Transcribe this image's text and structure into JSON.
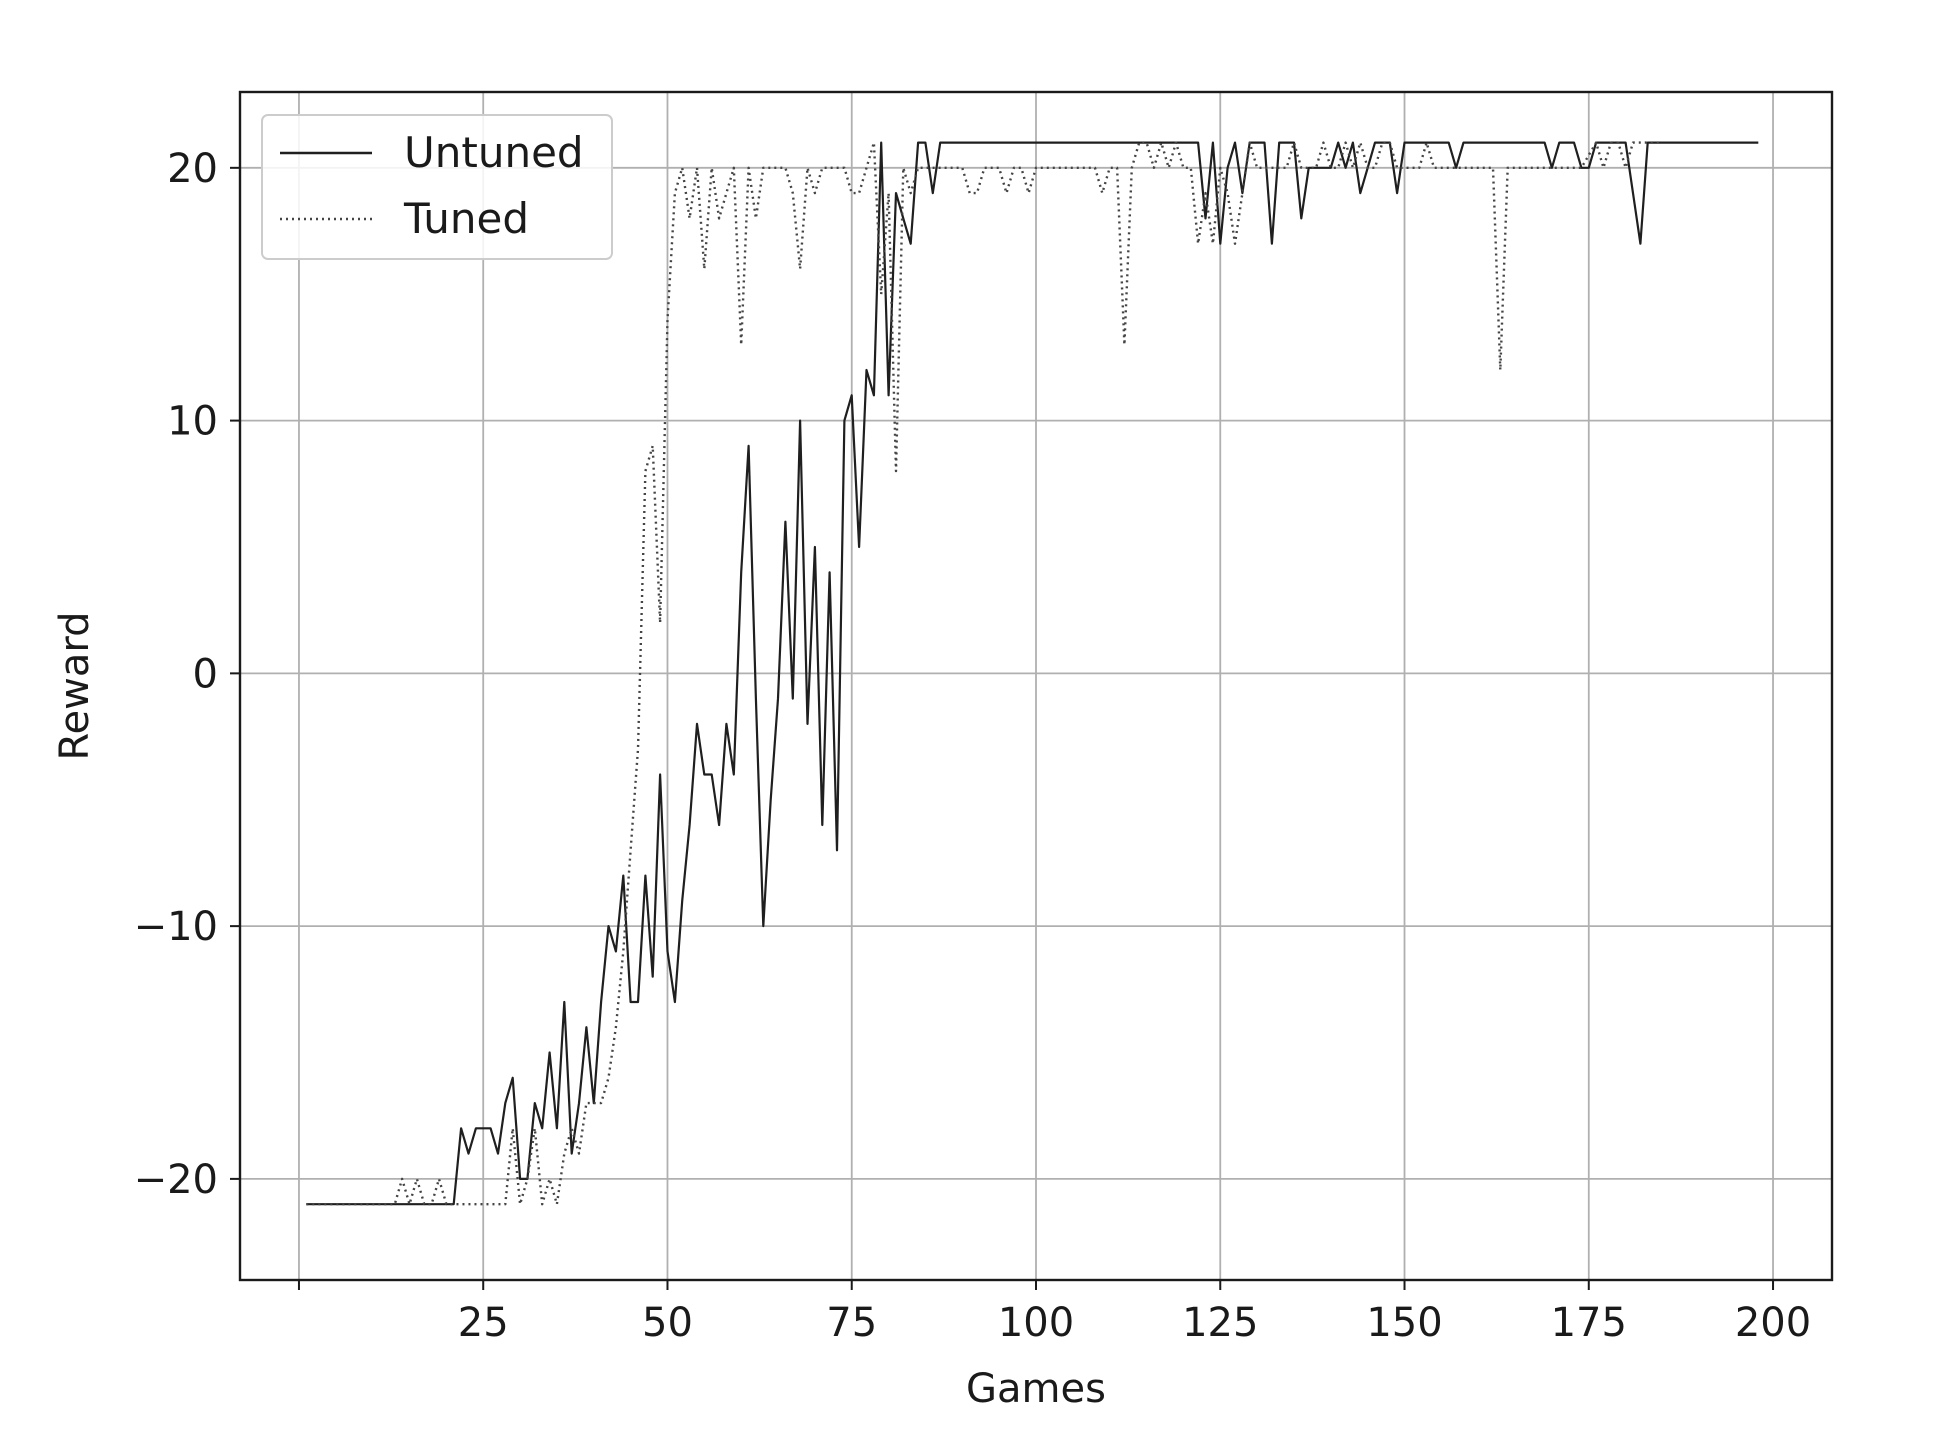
{
  "chart_data": {
    "type": "line",
    "xlabel": "Games",
    "ylabel": "Reward",
    "xlim": [
      -8,
      208
    ],
    "ylim": [
      -24,
      23
    ],
    "xticks": [
      25,
      50,
      75,
      100,
      125,
      150,
      175,
      200
    ],
    "xtick_labels": [
      "25",
      "50",
      "75",
      "100",
      "125",
      "150",
      "175",
      "200"
    ],
    "yticks": [
      -20,
      -10,
      0,
      10,
      20
    ],
    "ytick_labels": [
      "−20",
      "−10",
      "0",
      "10",
      "20"
    ],
    "grid": true,
    "legend_position": "upper-left",
    "colors": {
      "untuned": "#1f1f1f",
      "tuned": "#444444",
      "grid": "#b0b0b0",
      "axes": "#1a1a1a"
    },
    "series": [
      {
        "name": "Untuned",
        "style": "solid",
        "points": [
          [
            1,
            -21
          ],
          [
            5,
            -21
          ],
          [
            10,
            -21
          ],
          [
            15,
            -21
          ],
          [
            20,
            -21
          ],
          [
            21,
            -21
          ],
          [
            22,
            -18
          ],
          [
            23,
            -19
          ],
          [
            24,
            -18
          ],
          [
            25,
            -18
          ],
          [
            26,
            -18
          ],
          [
            27,
            -19
          ],
          [
            28,
            -17
          ],
          [
            29,
            -16
          ],
          [
            30,
            -20
          ],
          [
            31,
            -20
          ],
          [
            32,
            -17
          ],
          [
            33,
            -18
          ],
          [
            34,
            -15
          ],
          [
            35,
            -18
          ],
          [
            36,
            -13
          ],
          [
            37,
            -19
          ],
          [
            38,
            -17
          ],
          [
            39,
            -14
          ],
          [
            40,
            -17
          ],
          [
            41,
            -13
          ],
          [
            42,
            -10
          ],
          [
            43,
            -11
          ],
          [
            44,
            -8
          ],
          [
            45,
            -13
          ],
          [
            46,
            -13
          ],
          [
            47,
            -8
          ],
          [
            48,
            -12
          ],
          [
            49,
            -4
          ],
          [
            50,
            -11
          ],
          [
            51,
            -13
          ],
          [
            52,
            -9
          ],
          [
            53,
            -6
          ],
          [
            54,
            -2
          ],
          [
            55,
            -4
          ],
          [
            56,
            -4
          ],
          [
            57,
            -6
          ],
          [
            58,
            -2
          ],
          [
            59,
            -4
          ],
          [
            60,
            4
          ],
          [
            61,
            9
          ],
          [
            62,
            -1
          ],
          [
            63,
            -10
          ],
          [
            64,
            -5
          ],
          [
            65,
            -1
          ],
          [
            66,
            6
          ],
          [
            67,
            -1
          ],
          [
            68,
            10
          ],
          [
            69,
            -2
          ],
          [
            70,
            5
          ],
          [
            71,
            -6
          ],
          [
            72,
            4
          ],
          [
            73,
            -7
          ],
          [
            74,
            10
          ],
          [
            75,
            11
          ],
          [
            76,
            5
          ],
          [
            77,
            12
          ],
          [
            78,
            11
          ],
          [
            79,
            21
          ],
          [
            80,
            11
          ],
          [
            81,
            19
          ],
          [
            82,
            18
          ],
          [
            83,
            17
          ],
          [
            84,
            21
          ],
          [
            85,
            21
          ],
          [
            86,
            19
          ],
          [
            87,
            21
          ],
          [
            90,
            21
          ],
          [
            100,
            21
          ],
          [
            110,
            21
          ],
          [
            120,
            21
          ],
          [
            122,
            21
          ],
          [
            123,
            18
          ],
          [
            124,
            21
          ],
          [
            125,
            17
          ],
          [
            126,
            20
          ],
          [
            127,
            21
          ],
          [
            128,
            19
          ],
          [
            129,
            21
          ],
          [
            130,
            21
          ],
          [
            131,
            21
          ],
          [
            132,
            17
          ],
          [
            133,
            21
          ],
          [
            134,
            21
          ],
          [
            135,
            21
          ],
          [
            136,
            18
          ],
          [
            137,
            20
          ],
          [
            138,
            20
          ],
          [
            139,
            20
          ],
          [
            140,
            20
          ],
          [
            141,
            21
          ],
          [
            142,
            20
          ],
          [
            143,
            21
          ],
          [
            144,
            19
          ],
          [
            145,
            20
          ],
          [
            146,
            21
          ],
          [
            147,
            21
          ],
          [
            148,
            21
          ],
          [
            149,
            19
          ],
          [
            150,
            21
          ],
          [
            151,
            21
          ],
          [
            152,
            21
          ],
          [
            153,
            21
          ],
          [
            154,
            21
          ],
          [
            155,
            21
          ],
          [
            156,
            21
          ],
          [
            157,
            20
          ],
          [
            158,
            21
          ],
          [
            160,
            21
          ],
          [
            165,
            21
          ],
          [
            169,
            21
          ],
          [
            170,
            20
          ],
          [
            171,
            21
          ],
          [
            172,
            21
          ],
          [
            173,
            21
          ],
          [
            174,
            20
          ],
          [
            175,
            20
          ],
          [
            176,
            21
          ],
          [
            177,
            21
          ],
          [
            178,
            21
          ],
          [
            179,
            21
          ],
          [
            180,
            21
          ],
          [
            181,
            19
          ],
          [
            182,
            17
          ],
          [
            183,
            21
          ],
          [
            185,
            21
          ],
          [
            190,
            21
          ],
          [
            195,
            21
          ],
          [
            198,
            21
          ]
        ]
      },
      {
        "name": "Tuned",
        "style": "dotted",
        "points": [
          [
            1,
            -21
          ],
          [
            5,
            -21
          ],
          [
            10,
            -21
          ],
          [
            12,
            -21
          ],
          [
            13,
            -21
          ],
          [
            14,
            -20
          ],
          [
            15,
            -21
          ],
          [
            16,
            -20
          ],
          [
            17,
            -21
          ],
          [
            18,
            -21
          ],
          [
            19,
            -20
          ],
          [
            20,
            -21
          ],
          [
            22,
            -21
          ],
          [
            24,
            -21
          ],
          [
            26,
            -21
          ],
          [
            28,
            -21
          ],
          [
            29,
            -18
          ],
          [
            30,
            -21
          ],
          [
            31,
            -20
          ],
          [
            32,
            -18
          ],
          [
            33,
            -21
          ],
          [
            34,
            -20
          ],
          [
            35,
            -21
          ],
          [
            36,
            -19
          ],
          [
            37,
            -18
          ],
          [
            38,
            -19
          ],
          [
            39,
            -17
          ],
          [
            40,
            -17
          ],
          [
            41,
            -17
          ],
          [
            42,
            -16
          ],
          [
            43,
            -14
          ],
          [
            44,
            -11
          ],
          [
            45,
            -7
          ],
          [
            46,
            -3
          ],
          [
            47,
            8
          ],
          [
            48,
            9
          ],
          [
            49,
            2
          ],
          [
            50,
            14
          ],
          [
            51,
            19
          ],
          [
            52,
            20
          ],
          [
            53,
            18
          ],
          [
            54,
            20
          ],
          [
            55,
            16
          ],
          [
            56,
            20
          ],
          [
            57,
            18
          ],
          [
            58,
            19
          ],
          [
            59,
            20
          ],
          [
            60,
            13
          ],
          [
            61,
            20
          ],
          [
            62,
            18
          ],
          [
            63,
            20
          ],
          [
            64,
            20
          ],
          [
            65,
            20
          ],
          [
            66,
            20
          ],
          [
            67,
            19
          ],
          [
            68,
            16
          ],
          [
            69,
            20
          ],
          [
            70,
            19
          ],
          [
            71,
            20
          ],
          [
            72,
            20
          ],
          [
            73,
            20
          ],
          [
            74,
            20
          ],
          [
            75,
            19
          ],
          [
            76,
            19
          ],
          [
            77,
            20
          ],
          [
            78,
            21
          ],
          [
            79,
            15
          ],
          [
            80,
            19
          ],
          [
            81,
            8
          ],
          [
            82,
            20
          ],
          [
            83,
            19
          ],
          [
            84,
            20
          ],
          [
            85,
            20
          ],
          [
            86,
            20
          ],
          [
            87,
            20
          ],
          [
            88,
            20
          ],
          [
            89,
            20
          ],
          [
            90,
            20
          ],
          [
            91,
            19
          ],
          [
            92,
            19
          ],
          [
            93,
            20
          ],
          [
            94,
            20
          ],
          [
            95,
            20
          ],
          [
            96,
            19
          ],
          [
            97,
            20
          ],
          [
            98,
            20
          ],
          [
            99,
            19
          ],
          [
            100,
            20
          ],
          [
            105,
            20
          ],
          [
            108,
            20
          ],
          [
            109,
            19
          ],
          [
            110,
            20
          ],
          [
            111,
            20
          ],
          [
            112,
            13
          ],
          [
            113,
            20
          ],
          [
            114,
            21
          ],
          [
            115,
            21
          ],
          [
            116,
            20
          ],
          [
            117,
            21
          ],
          [
            118,
            20
          ],
          [
            119,
            21
          ],
          [
            120,
            20
          ],
          [
            121,
            20
          ],
          [
            122,
            17
          ],
          [
            123,
            19
          ],
          [
            124,
            17
          ],
          [
            125,
            20
          ],
          [
            126,
            19
          ],
          [
            127,
            17
          ],
          [
            128,
            19
          ],
          [
            129,
            21
          ],
          [
            130,
            20
          ],
          [
            131,
            20
          ],
          [
            132,
            20
          ],
          [
            133,
            20
          ],
          [
            134,
            20
          ],
          [
            135,
            21
          ],
          [
            136,
            20
          ],
          [
            137,
            20
          ],
          [
            138,
            20
          ],
          [
            139,
            21
          ],
          [
            140,
            20
          ],
          [
            141,
            20
          ],
          [
            142,
            21
          ],
          [
            143,
            20
          ],
          [
            144,
            21
          ],
          [
            145,
            20
          ],
          [
            146,
            20
          ],
          [
            147,
            21
          ],
          [
            148,
            21
          ],
          [
            149,
            20
          ],
          [
            150,
            20
          ],
          [
            151,
            20
          ],
          [
            152,
            20
          ],
          [
            153,
            21
          ],
          [
            154,
            20
          ],
          [
            155,
            20
          ],
          [
            156,
            20
          ],
          [
            157,
            20
          ],
          [
            158,
            20
          ],
          [
            159,
            20
          ],
          [
            160,
            20
          ],
          [
            161,
            20
          ],
          [
            162,
            20
          ],
          [
            163,
            12
          ],
          [
            164,
            20
          ],
          [
            165,
            20
          ],
          [
            166,
            20
          ],
          [
            167,
            20
          ],
          [
            168,
            20
          ],
          [
            170,
            20
          ],
          [
            172,
            20
          ],
          [
            174,
            20
          ],
          [
            176,
            21
          ],
          [
            177,
            20
          ],
          [
            178,
            21
          ],
          [
            179,
            21
          ],
          [
            180,
            20
          ],
          [
            181,
            21
          ],
          [
            182,
            21
          ],
          [
            183,
            21
          ],
          [
            184,
            21
          ],
          [
            185,
            21
          ]
        ]
      }
    ]
  }
}
